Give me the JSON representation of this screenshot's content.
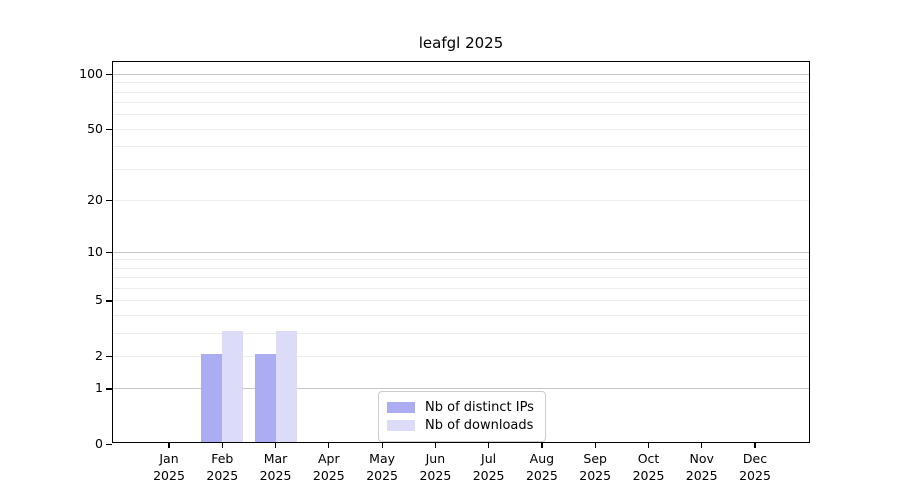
{
  "chart_data": {
    "type": "bar",
    "title": "leafgl 2025",
    "x_months": [
      "Jan",
      "Feb",
      "Mar",
      "Apr",
      "May",
      "Jun",
      "Jul",
      "Aug",
      "Sep",
      "Oct",
      "Nov",
      "Dec"
    ],
    "x_year": "2025",
    "series": [
      {
        "name": "Nb of distinct IPs",
        "color": "#acacf2",
        "values": [
          0,
          2,
          2,
          0,
          0,
          0,
          0,
          0,
          0,
          0,
          0,
          0
        ]
      },
      {
        "name": "Nb of downloads",
        "color": "#dcdcf9",
        "values": [
          0,
          3,
          3,
          0,
          0,
          0,
          0,
          0,
          0,
          0,
          0,
          0
        ]
      }
    ],
    "yscale": "log1p",
    "ylim": [
      0,
      116
    ],
    "yticks": [
      0,
      1,
      2,
      5,
      10,
      20,
      50,
      100
    ],
    "major_gridlines": [
      1,
      10,
      100
    ],
    "minor_gridlines": [
      2,
      3,
      4,
      5,
      6,
      7,
      8,
      9,
      20,
      30,
      40,
      50,
      60,
      70,
      80,
      90
    ],
    "grid": "horizontal",
    "legend_position": "bottom-center-inside",
    "colors": {
      "axis": "#000000",
      "grid_minor": "#ededed",
      "grid_major": "#c6c6c6",
      "legend_border": "#cccccc",
      "background": "#ffffff"
    }
  }
}
